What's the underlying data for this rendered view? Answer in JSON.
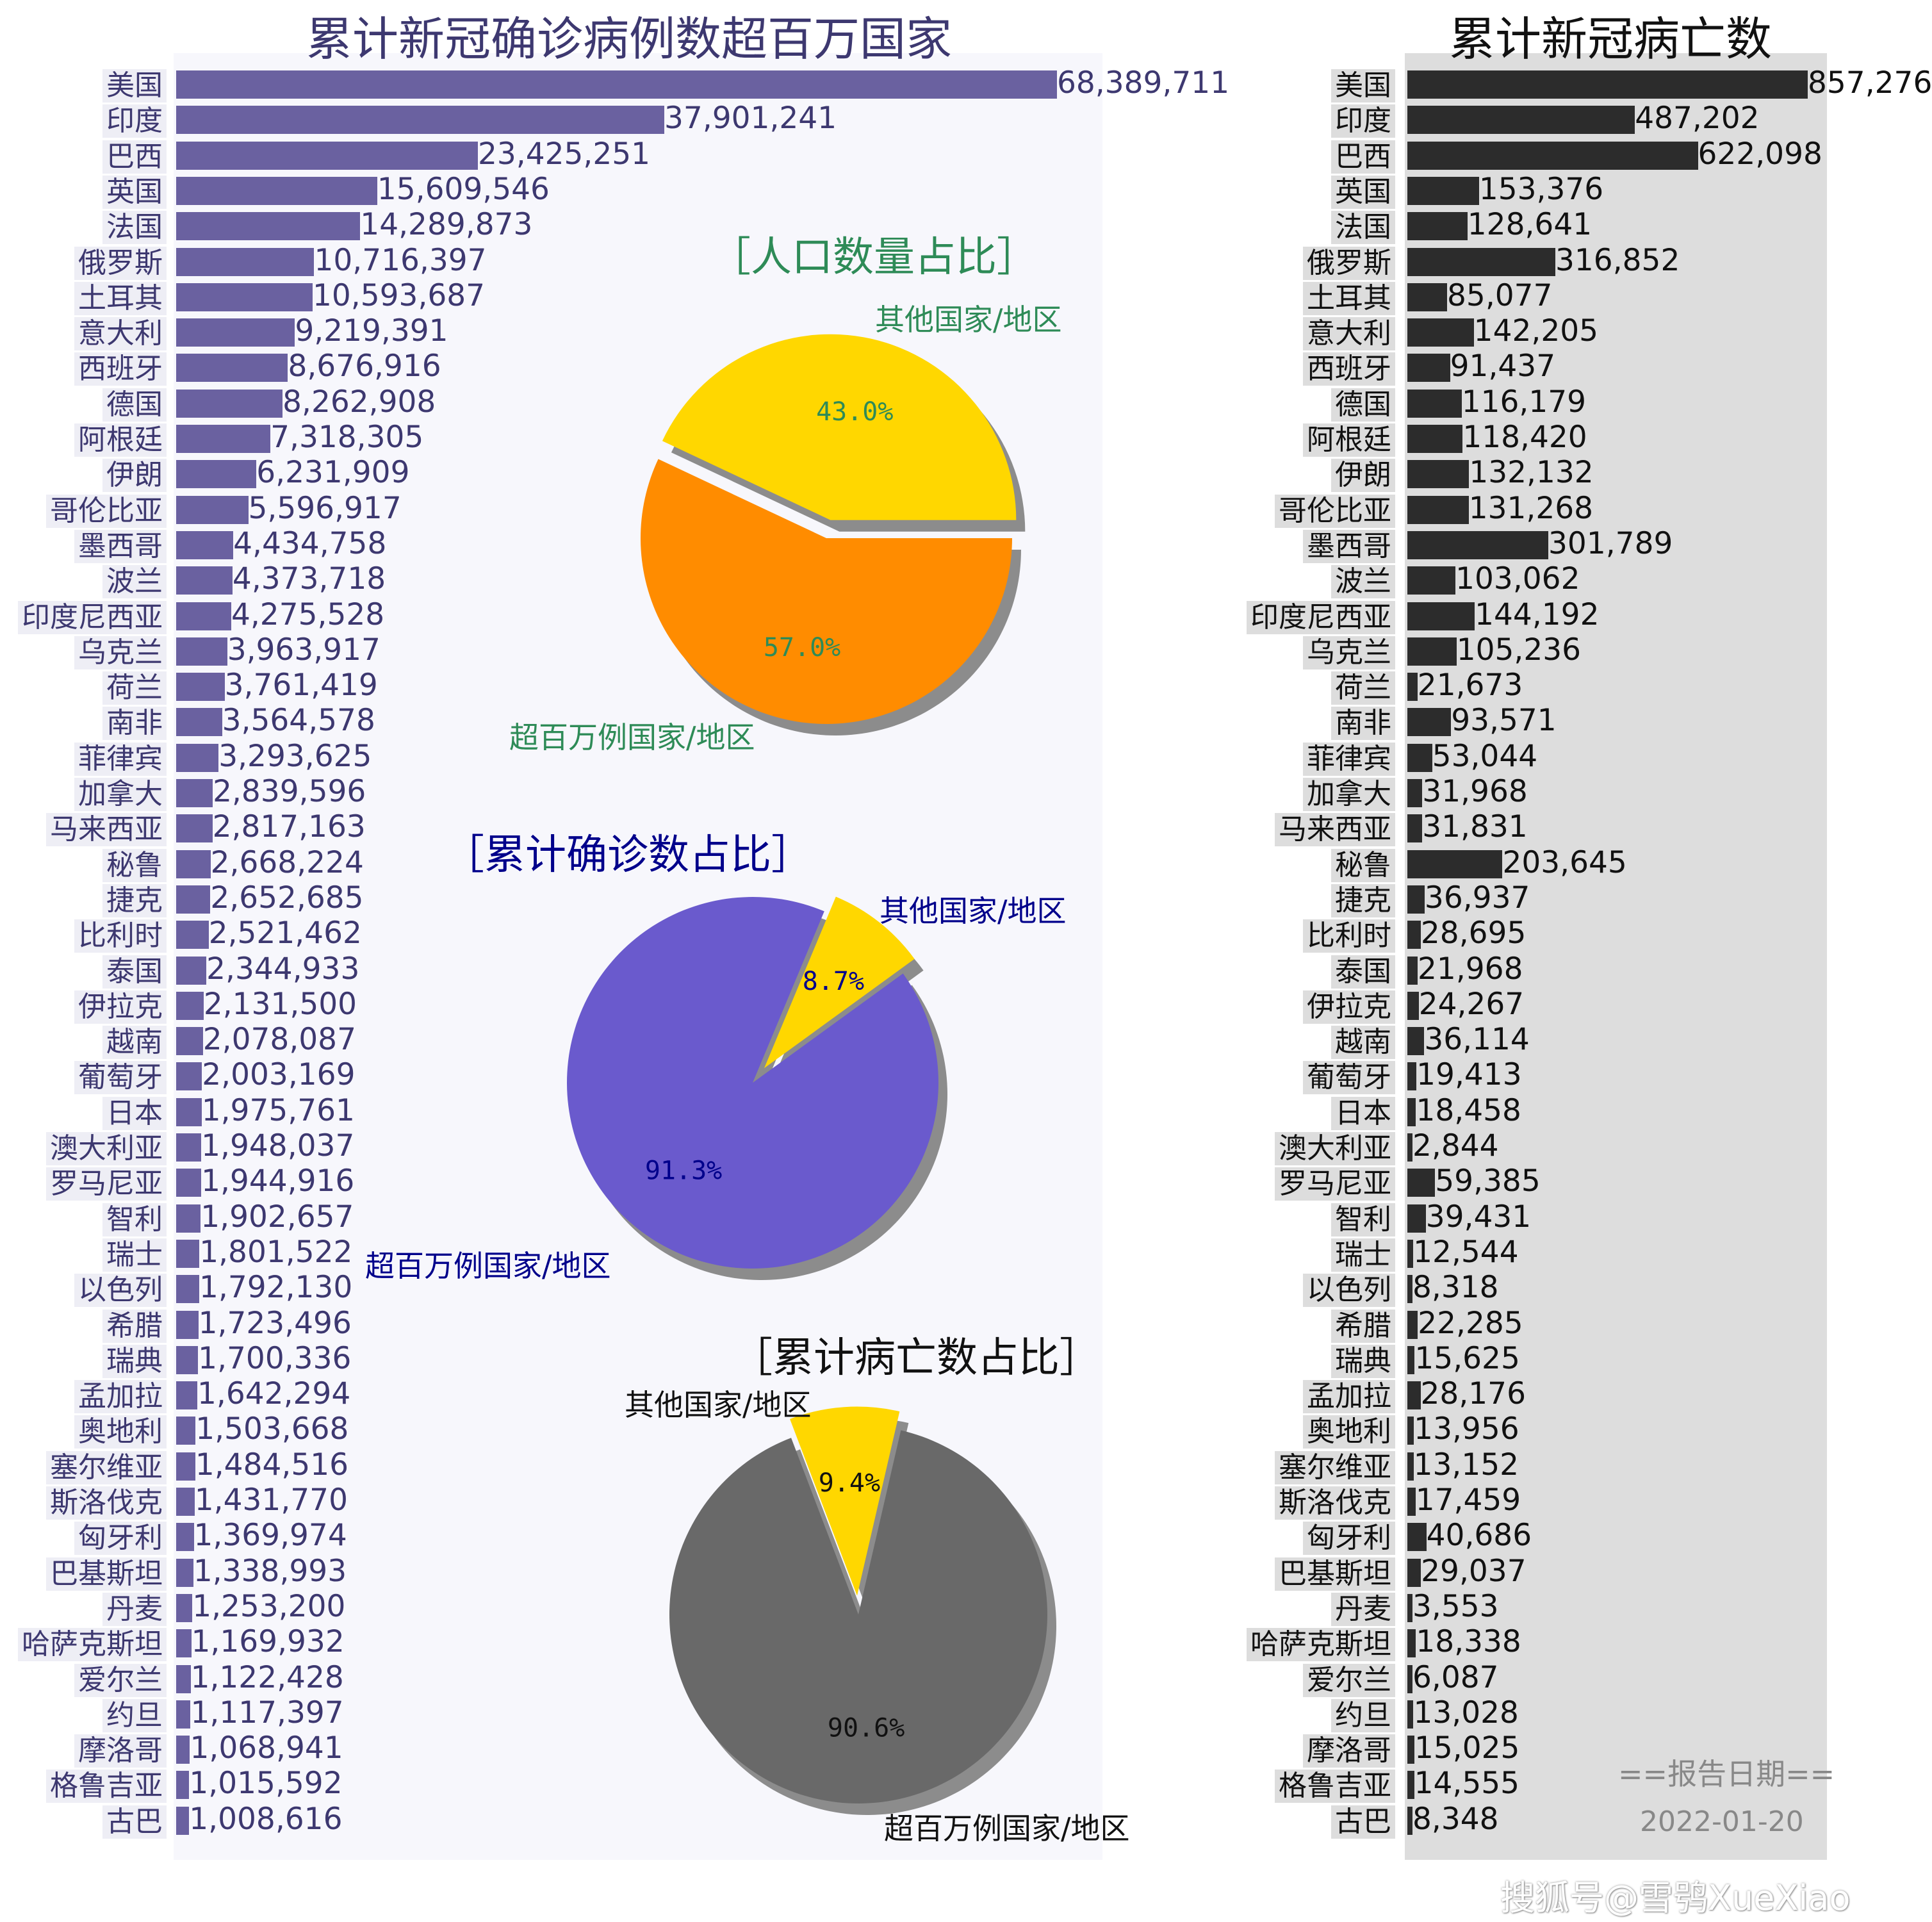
{
  "colors": {
    "cases_bar": "#6a61a0",
    "cases_text": "#3d3870",
    "deaths_bar": "#2c2c2c",
    "deaths_text": "#111111",
    "left_panel_bg": "#f7f7fc",
    "right_panel_bg": "#dddddd",
    "pie1_text": "#2e8b57",
    "pie1_other": "#ffd700",
    "pie1_main": "#ff8c00",
    "pie2_text": "#00008b",
    "pie2_other": "#ffd700",
    "pie2_main": "#6a5acd",
    "pie3_text": "#111111",
    "pie3_other": "#ffd700",
    "pie3_main": "#696969",
    "shadow": "#8c8c8c"
  },
  "labels": {
    "report_date_label": "==报告日期==",
    "report_date": "2022-01-20",
    "watermark": "搜狐号@雪鸮XueXiao"
  },
  "chart_data": [
    {
      "type": "bar",
      "orientation": "horizontal",
      "title": "累计新冠确诊病例数超百万国家",
      "categories": [
        "美国",
        "印度",
        "巴西",
        "英国",
        "法国",
        "俄罗斯",
        "土耳其",
        "意大利",
        "西班牙",
        "德国",
        "阿根廷",
        "伊朗",
        "哥伦比亚",
        "墨西哥",
        "波兰",
        "印度尼西亚",
        "乌克兰",
        "荷兰",
        "南非",
        "菲律宾",
        "加拿大",
        "马来西亚",
        "秘鲁",
        "捷克",
        "比利时",
        "泰国",
        "伊拉克",
        "越南",
        "葡萄牙",
        "日本",
        "澳大利亚",
        "罗马尼亚",
        "智利",
        "瑞士",
        "以色列",
        "希腊",
        "瑞典",
        "孟加拉",
        "奥地利",
        "塞尔维亚",
        "斯洛伐克",
        "匈牙利",
        "巴基斯坦",
        "丹麦",
        "哈萨克斯坦",
        "爱尔兰",
        "约旦",
        "摩洛哥",
        "格鲁吉亚",
        "古巴"
      ],
      "values": [
        68389711,
        37901241,
        23425251,
        15609546,
        14289873,
        10716397,
        10593687,
        9219391,
        8676916,
        8262908,
        7318305,
        6231909,
        5596917,
        4434758,
        4373718,
        4275528,
        3963917,
        3761419,
        3564578,
        3293625,
        2839596,
        2817163,
        2668224,
        2652685,
        2521462,
        2344933,
        2131500,
        2078087,
        2003169,
        1975761,
        1948037,
        1944916,
        1902657,
        1801522,
        1792130,
        1723496,
        1700336,
        1642294,
        1503668,
        1484516,
        1431770,
        1369974,
        1338993,
        1253200,
        1169932,
        1122428,
        1117397,
        1068941,
        1015592,
        1008616
      ],
      "value_labels": [
        "68,389,711",
        "37,901,241",
        "23,425,251",
        "15,609,546",
        "14,289,873",
        "10,716,397",
        "10,593,687",
        "9,219,391",
        "8,676,916",
        "8,262,908",
        "7,318,305",
        "6,231,909",
        "5,596,917",
        "4,434,758",
        "4,373,718",
        "4,275,528",
        "3,963,917",
        "3,761,419",
        "3,564,578",
        "3,293,625",
        "2,839,596",
        "2,817,163",
        "2,668,224",
        "2,652,685",
        "2,521,462",
        "2,344,933",
        "2,131,500",
        "2,078,087",
        "2,003,169",
        "1,975,761",
        "1,948,037",
        "1,944,916",
        "1,902,657",
        "1,801,522",
        "1,792,130",
        "1,723,496",
        "1,700,336",
        "1,642,294",
        "1,503,668",
        "1,484,516",
        "1,431,770",
        "1,369,974",
        "1,338,993",
        "1,253,200",
        "1,169,932",
        "1,122,428",
        "1,117,397",
        "1,068,941",
        "1,015,592",
        "1,008,616"
      ]
    },
    {
      "type": "bar",
      "orientation": "horizontal",
      "title": "累计新冠病亡数",
      "categories": [
        "美国",
        "印度",
        "巴西",
        "英国",
        "法国",
        "俄罗斯",
        "土耳其",
        "意大利",
        "西班牙",
        "德国",
        "阿根廷",
        "伊朗",
        "哥伦比亚",
        "墨西哥",
        "波兰",
        "印度尼西亚",
        "乌克兰",
        "荷兰",
        "南非",
        "菲律宾",
        "加拿大",
        "马来西亚",
        "秘鲁",
        "捷克",
        "比利时",
        "泰国",
        "伊拉克",
        "越南",
        "葡萄牙",
        "日本",
        "澳大利亚",
        "罗马尼亚",
        "智利",
        "瑞士",
        "以色列",
        "希腊",
        "瑞典",
        "孟加拉",
        "奥地利",
        "塞尔维亚",
        "斯洛伐克",
        "匈牙利",
        "巴基斯坦",
        "丹麦",
        "哈萨克斯坦",
        "爱尔兰",
        "约旦",
        "摩洛哥",
        "格鲁吉亚",
        "古巴"
      ],
      "values": [
        857276,
        487202,
        622098,
        153376,
        128641,
        316852,
        85077,
        142205,
        91437,
        116179,
        118420,
        132132,
        131268,
        301789,
        103062,
        144192,
        105236,
        21673,
        93571,
        53044,
        31968,
        31831,
        203645,
        36937,
        28695,
        21968,
        24267,
        36114,
        19413,
        18458,
        2844,
        59385,
        39431,
        12544,
        8318,
        22285,
        15625,
        28176,
        13956,
        13152,
        17459,
        40686,
        29037,
        3553,
        18338,
        6087,
        13028,
        15025,
        14555,
        8348
      ],
      "value_labels": [
        "857,276",
        "487,202",
        "622,098",
        "153,376",
        "128,641",
        "316,852",
        "85,077",
        "142,205",
        "91,437",
        "116,179",
        "118,420",
        "132,132",
        "131,268",
        "301,789",
        "103,062",
        "144,192",
        "105,236",
        "21,673",
        "93,571",
        "53,044",
        "31,968",
        "31,831",
        "203,645",
        "36,937",
        "28,695",
        "21,968",
        "24,267",
        "36,114",
        "19,413",
        "18,458",
        "2,844",
        "59,385",
        "39,431",
        "12,544",
        "8,318",
        "22,285",
        "15,625",
        "28,176",
        "13,956",
        "13,152",
        "17,459",
        "40,686",
        "29,037",
        "3,553",
        "18,338",
        "6,087",
        "13,028",
        "15,025",
        "14,555",
        "8,348"
      ]
    },
    {
      "type": "pie",
      "title": "［人口数量占比］",
      "slices": [
        {
          "label": "其他国家/地区",
          "value": 43.0,
          "pct_label": "43.0%",
          "exploded": true
        },
        {
          "label": "超百万例国家/地区",
          "value": 57.0,
          "pct_label": "57.0%",
          "exploded": false
        }
      ]
    },
    {
      "type": "pie",
      "title": "［累计确诊数占比］",
      "slices": [
        {
          "label": "其他国家/地区",
          "value": 8.7,
          "pct_label": "8.7%",
          "exploded": true
        },
        {
          "label": "超百万例国家/地区",
          "value": 91.3,
          "pct_label": "91.3%",
          "exploded": false
        }
      ]
    },
    {
      "type": "pie",
      "title": "［累计病亡数占比］",
      "slices": [
        {
          "label": "其他国家/地区",
          "value": 9.4,
          "pct_label": "9.4%",
          "exploded": true
        },
        {
          "label": "超百万例国家/地区",
          "value": 90.6,
          "pct_label": "90.6%",
          "exploded": false
        }
      ]
    }
  ]
}
